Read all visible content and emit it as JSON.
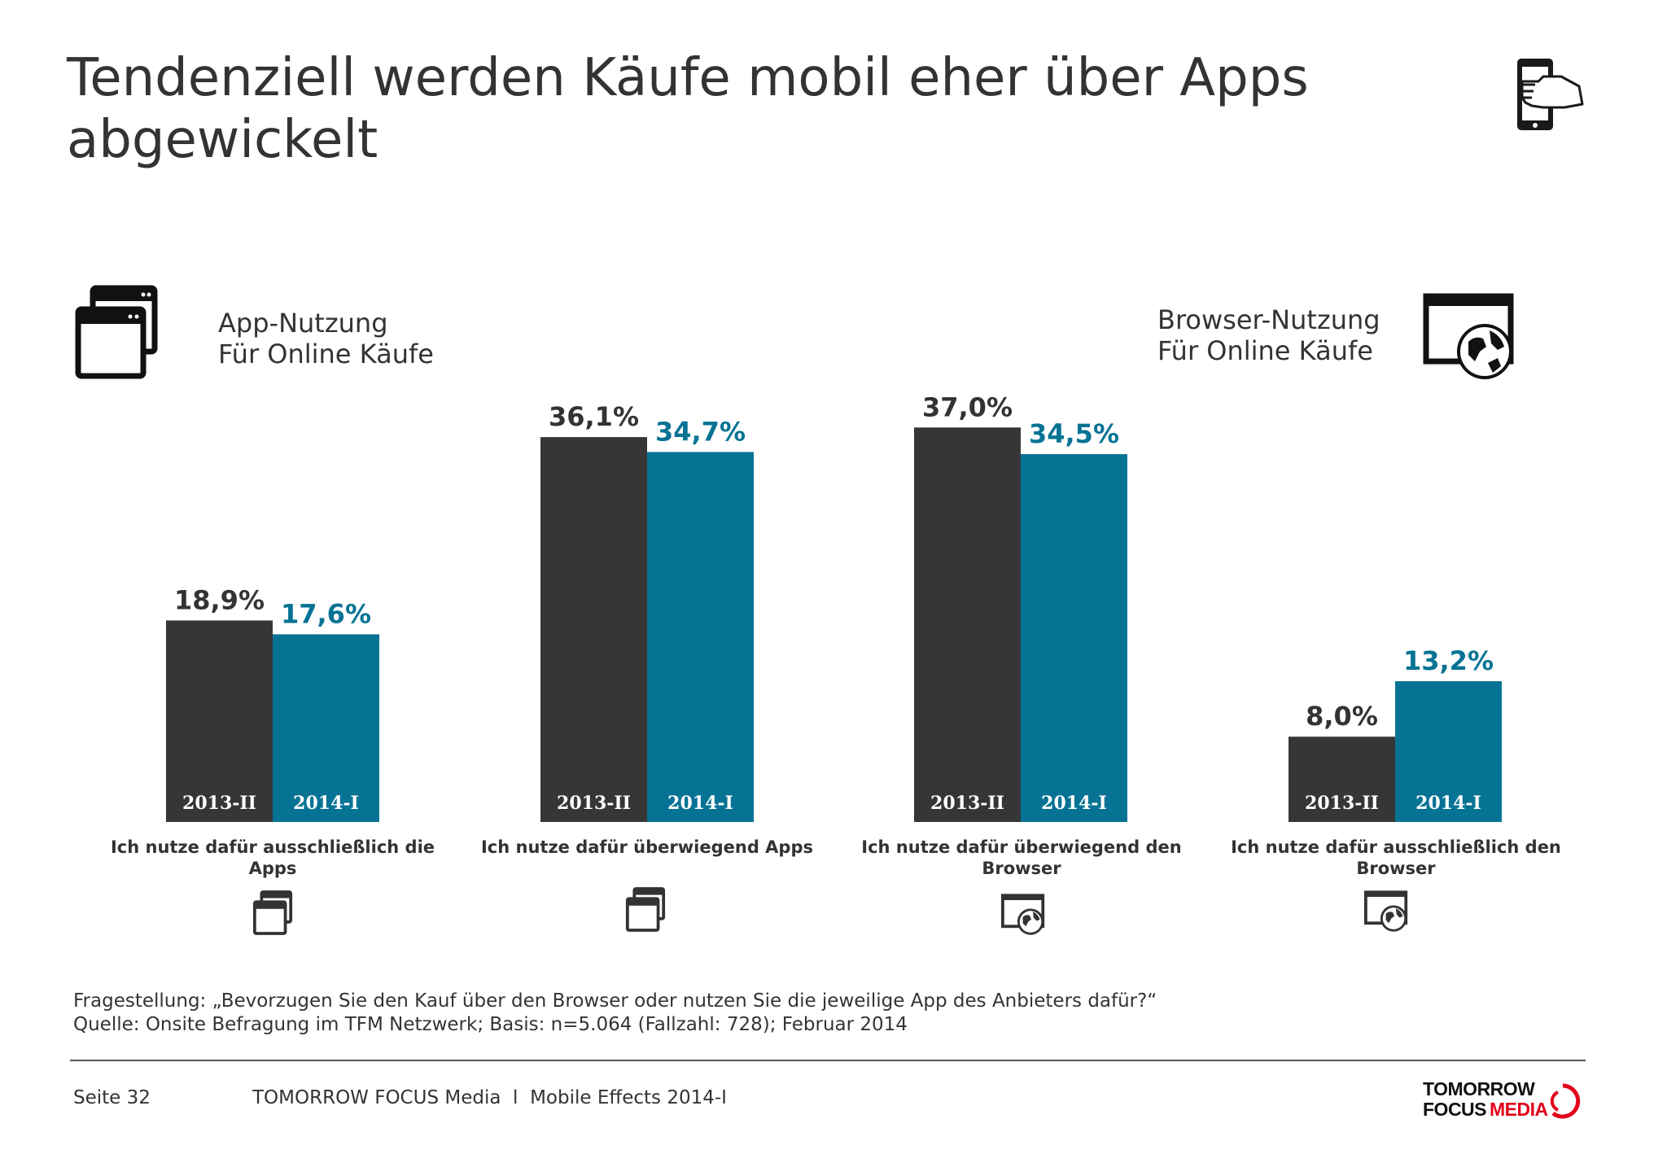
{
  "title": "Tendenziell werden Käufe mobil eher über Apps abgewickelt",
  "app_section": {
    "line1": "App-Nutzung",
    "line2": "Für Online Käufe",
    "icon": "app-windows-icon"
  },
  "browser_section": {
    "line1": "Browser-Nutzung",
    "line2": "Für Online Käufe",
    "icon": "browser-globe-icon"
  },
  "header_icon": "smartphone-hand-icon",
  "chart_data": {
    "type": "bar",
    "categories": [
      "Ich nutze dafür ausschließlich die Apps",
      "Ich nutze dafür überwiegend Apps",
      "Ich nutze dafür überwiegend den Browser",
      "Ich nutze dafür ausschließlich den Browser"
    ],
    "category_icons": [
      "app-windows-icon",
      "app-windows-icon",
      "browser-globe-icon",
      "browser-globe-icon"
    ],
    "series": [
      {
        "name": "2013-II",
        "values": [
          18.9,
          36.1,
          37.0,
          8.0
        ],
        "labels": [
          "18,9%",
          "36,1%",
          "37,0%",
          "8,0%"
        ],
        "color": "#363637"
      },
      {
        "name": "2014-I",
        "values": [
          17.6,
          34.7,
          34.5,
          13.2
        ],
        "labels": [
          "17,6%",
          "34,7%",
          "34,5%",
          "13,2%"
        ],
        "color": "#077394"
      }
    ],
    "ylim": [
      0,
      40
    ],
    "grid": false,
    "legend": "none"
  },
  "footnote": {
    "question": "Fragestellung: „Bevorzugen Sie den Kauf über den Browser oder nutzen Sie die jeweilige App des Anbieters dafür?“",
    "source": "Quelle: Onsite Befragung im TFM Netzwerk; Basis: n=5.064 (Fallzahl: 728); Februar 2014"
  },
  "footer": {
    "page": "Seite 32",
    "source": "TOMORROW FOCUS Media  l  Mobile Effects 2014-I",
    "logo_line1": "TOMORROW",
    "logo_line2a": "FOCUS",
    "logo_line2b": "MEDIA"
  },
  "colors": {
    "dark": "#363637",
    "teal": "#077394",
    "logo_red": "#e2001a"
  }
}
